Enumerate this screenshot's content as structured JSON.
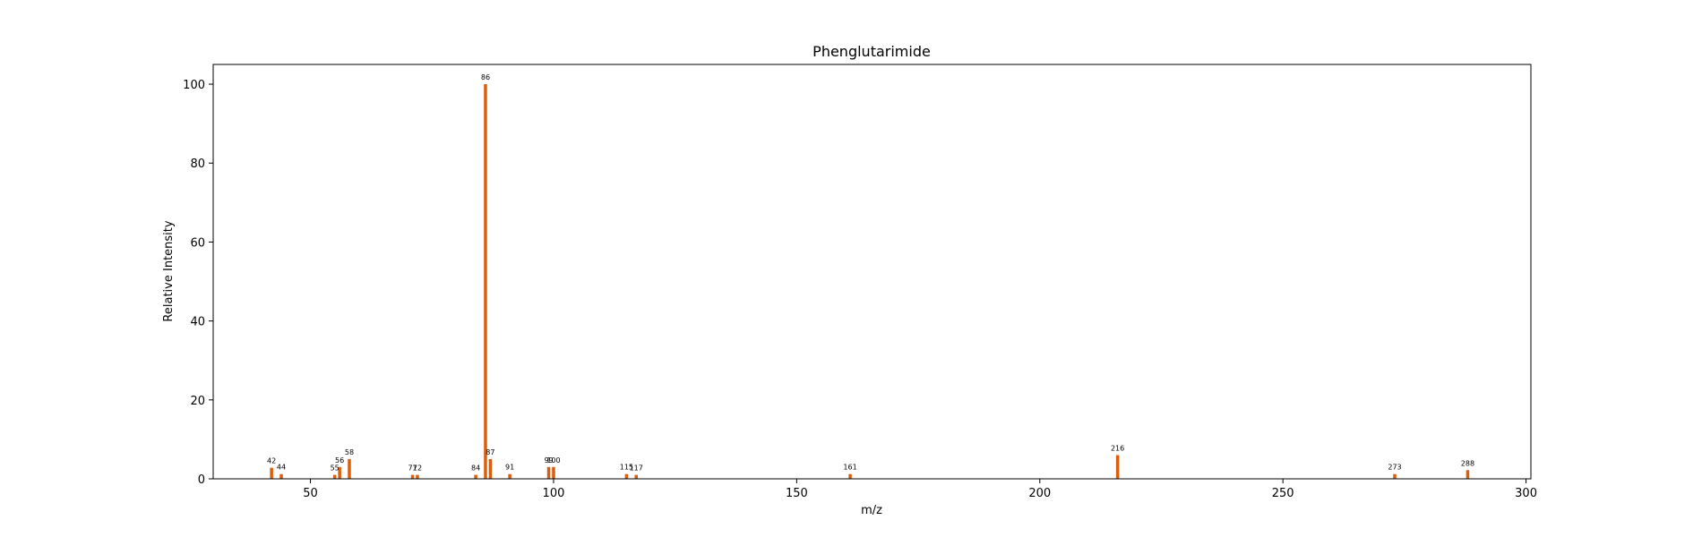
{
  "chart_data": {
    "type": "bar",
    "title": "Phenglutarimide",
    "xlabel": "m/z",
    "ylabel": "Relative Intensity",
    "xlim": [
      30,
      301
    ],
    "ylim": [
      0,
      105
    ],
    "x_ticks": [
      50,
      100,
      150,
      200,
      250,
      300
    ],
    "y_ticks": [
      0,
      20,
      40,
      60,
      80,
      100
    ],
    "bar_color": "#d95f0e",
    "grid": false,
    "series": [
      {
        "x": [
          42,
          44,
          55,
          56,
          58,
          71,
          72,
          84,
          86,
          87,
          91,
          99,
          100,
          115,
          117,
          161,
          216,
          273,
          288
        ],
        "values": [
          2.8,
          1.2,
          1.0,
          3.0,
          5.0,
          1.0,
          1.0,
          1.0,
          100,
          5.0,
          1.2,
          3.0,
          3.0,
          1.2,
          1.0,
          1.2,
          6.0,
          1.2,
          2.2
        ]
      }
    ],
    "peak_labels": [
      "42",
      "44",
      "55",
      "56",
      "58",
      "71",
      "72",
      "84",
      "86",
      "87",
      "91",
      "99",
      "100",
      "115",
      "117",
      "161",
      "216",
      "273",
      "288"
    ]
  }
}
